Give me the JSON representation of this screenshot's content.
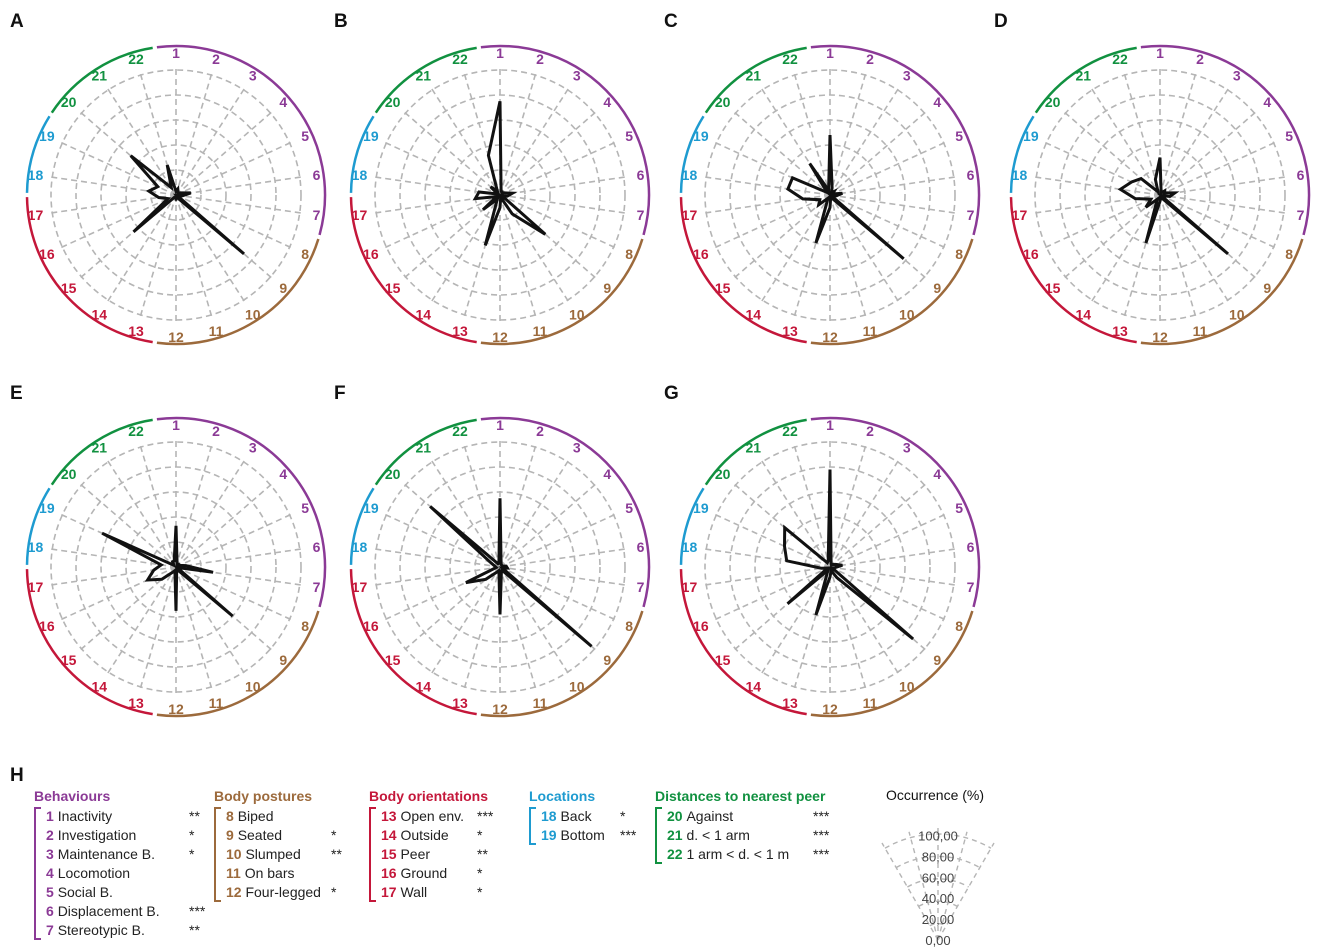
{
  "panels": [
    "A",
    "B",
    "C",
    "D",
    "E",
    "F",
    "G"
  ],
  "panel_h_label": "H",
  "variables": [
    {
      "num": "1",
      "category": "behaviours"
    },
    {
      "num": "2",
      "category": "behaviours"
    },
    {
      "num": "3",
      "category": "behaviours"
    },
    {
      "num": "4",
      "category": "behaviours"
    },
    {
      "num": "5",
      "category": "behaviours"
    },
    {
      "num": "6",
      "category": "behaviours"
    },
    {
      "num": "7",
      "category": "behaviours"
    },
    {
      "num": "8",
      "category": "postures"
    },
    {
      "num": "9",
      "category": "postures"
    },
    {
      "num": "10",
      "category": "postures"
    },
    {
      "num": "11",
      "category": "postures"
    },
    {
      "num": "12",
      "category": "postures"
    },
    {
      "num": "13",
      "category": "orientations"
    },
    {
      "num": "14",
      "category": "orientations"
    },
    {
      "num": "15",
      "category": "orientations"
    },
    {
      "num": "16",
      "category": "orientations"
    },
    {
      "num": "17",
      "category": "orientations"
    },
    {
      "num": "18",
      "category": "locations"
    },
    {
      "num": "19",
      "category": "locations"
    },
    {
      "num": "20",
      "category": "distances"
    },
    {
      "num": "21",
      "category": "distances"
    },
    {
      "num": "22",
      "category": "distances"
    }
  ],
  "colors": {
    "behaviours": "#8b3a96",
    "postures": "#9c6a3c",
    "orientations": "#c4173a",
    "locations": "#1e9bd0",
    "distances": "#119140",
    "grid": "#b5b5b5",
    "data": "#111111"
  },
  "legend": {
    "groups": [
      {
        "title": "Behaviours",
        "category": "behaviours",
        "items": [
          {
            "num": "1",
            "label": "Inactivity",
            "sig": "**"
          },
          {
            "num": "2",
            "label": "Investigation",
            "sig": "*"
          },
          {
            "num": "3",
            "label": "Maintenance B.",
            "sig": "*"
          },
          {
            "num": "4",
            "label": "Locomotion",
            "sig": ""
          },
          {
            "num": "5",
            "label": "Social B.",
            "sig": ""
          },
          {
            "num": "6",
            "label": "Displacement B.",
            "sig": "***"
          },
          {
            "num": "7",
            "label": "Stereotypic B.",
            "sig": "**"
          }
        ]
      },
      {
        "title": "Body postures",
        "category": "postures",
        "items": [
          {
            "num": "8",
            "label": "Biped",
            "sig": ""
          },
          {
            "num": "9",
            "label": "Seated",
            "sig": "*"
          },
          {
            "num": "10",
            "label": "Slumped",
            "sig": "**"
          },
          {
            "num": "11",
            "label": "On bars",
            "sig": ""
          },
          {
            "num": "12",
            "label": "Four-legged",
            "sig": "*"
          }
        ]
      },
      {
        "title": "Body orientations",
        "category": "orientations",
        "items": [
          {
            "num": "13",
            "label": "Open env.",
            "sig": "***"
          },
          {
            "num": "14",
            "label": "Outside",
            "sig": "*"
          },
          {
            "num": "15",
            "label": "Peer",
            "sig": "**"
          },
          {
            "num": "16",
            "label": "Ground",
            "sig": "*"
          },
          {
            "num": "17",
            "label": "Wall",
            "sig": "*"
          }
        ]
      },
      {
        "title": "Locations",
        "category": "locations",
        "items": [
          {
            "num": "18",
            "label": "Back",
            "sig": "*"
          },
          {
            "num": "19",
            "label": "Bottom",
            "sig": "***"
          }
        ]
      },
      {
        "title": "Distances to nearest peer",
        "category": "distances",
        "items": [
          {
            "num": "20",
            "label": "Against",
            "sig": "***"
          },
          {
            "num": "21",
            "label": "d. < 1 arm",
            "sig": "***"
          },
          {
            "num": "22",
            "label": "1 arm < d. < 1 m",
            "sig": "***"
          }
        ]
      }
    ]
  },
  "chart_data": {
    "type": "radar",
    "ylabel": "Occurrence (%)",
    "ylim": [
      0,
      100
    ],
    "scale_ticks": [
      "0,00",
      "20,00",
      "40,00",
      "60,00",
      "80,00",
      "100,00"
    ],
    "categories": [
      "1",
      "2",
      "3",
      "4",
      "5",
      "6",
      "7",
      "8",
      "9",
      "10",
      "11",
      "12",
      "13",
      "14",
      "15",
      "16",
      "17",
      "18",
      "19",
      "20",
      "21",
      "22"
    ],
    "series": [
      {
        "panel": "A",
        "values": [
          3,
          5,
          3,
          2,
          4,
          12,
          5,
          1,
          72,
          3,
          2,
          3,
          2,
          2,
          45,
          7,
          14,
          22,
          16,
          48,
          7,
          25
        ]
      },
      {
        "panel": "B",
        "values": [
          75,
          3,
          3,
          2,
          4,
          10,
          6,
          2,
          48,
          18,
          2,
          10,
          42,
          4,
          18,
          3,
          20,
          17,
          2,
          10,
          4,
          33
        ]
      },
      {
        "panel": "C",
        "values": [
          48,
          6,
          2,
          4,
          2,
          10,
          5,
          1,
          78,
          3,
          2,
          10,
          40,
          3,
          12,
          9,
          22,
          34,
          33,
          3,
          30,
          4
        ]
      },
      {
        "panel": "D",
        "values": [
          30,
          3,
          2,
          5,
          4,
          12,
          8,
          1,
          72,
          3,
          2,
          5,
          40,
          4,
          15,
          8,
          20,
          32,
          25,
          20,
          3,
          13
        ]
      },
      {
        "panel": "E",
        "values": [
          33,
          3,
          2,
          3,
          3,
          8,
          30,
          1,
          60,
          3,
          2,
          35,
          3,
          5,
          15,
          25,
          18,
          12,
          65,
          2,
          5,
          5
        ]
      },
      {
        "panel": "F",
        "values": [
          55,
          3,
          2,
          2,
          2,
          5,
          6,
          2,
          97,
          3,
          4,
          38,
          3,
          5,
          15,
          30,
          3,
          4,
          8,
          74,
          3,
          3
        ]
      },
      {
        "panel": "G",
        "values": [
          78,
          3,
          2,
          3,
          5,
          10,
          4,
          2,
          88,
          10,
          3,
          8,
          40,
          3,
          45,
          2,
          7,
          35,
          40,
          48,
          4,
          5
        ]
      }
    ]
  }
}
